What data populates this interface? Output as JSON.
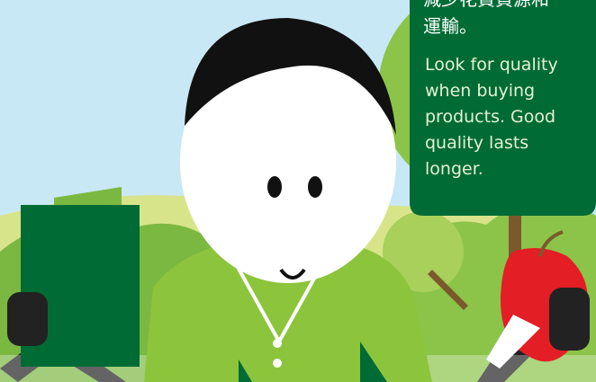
{
  "text_box": {
    "chinese_lines": [
      "減少花費資源和",
      "運輸。"
    ],
    "english_lines": [
      "Look for quality",
      "when buying",
      "products. Good",
      "quality lasts",
      "longer."
    ]
  }
}
